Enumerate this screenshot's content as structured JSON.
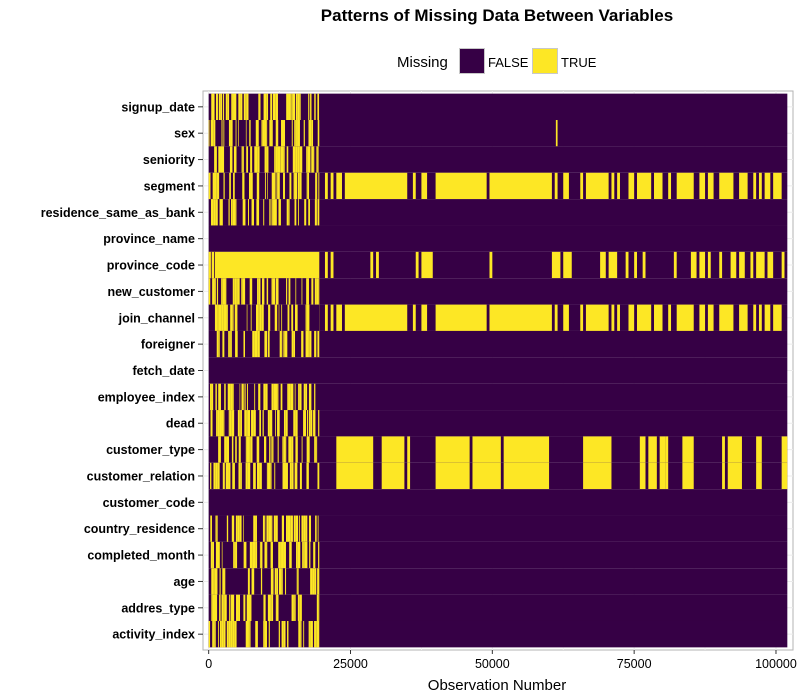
{
  "chart_data": {
    "type": "heatmap",
    "title": "Patterns of Missing Data Between Variables",
    "xlabel": "Observation Number",
    "ylabel": "",
    "xlim": [
      -1000,
      103000
    ],
    "x_ticks": [
      0,
      25000,
      50000,
      75000,
      100000
    ],
    "x_tick_labels": [
      "0",
      "25000",
      "50000",
      "75000",
      "100000"
    ],
    "n_observations": 102000,
    "grid": true,
    "legend": {
      "title": "Missing",
      "placement": "top",
      "entries": [
        {
          "label": "FALSE",
          "color": "#360045"
        },
        {
          "label": "TRUE",
          "color": "#FDE725"
        }
      ]
    },
    "colors": {
      "false": "#360045",
      "true": "#FDE725"
    },
    "variables": [
      {
        "name": "signup_date",
        "true_ranges": [
          [
            0,
            19500
          ]
        ],
        "density": 0.45
      },
      {
        "name": "sex",
        "true_ranges": [
          [
            0,
            19500
          ],
          [
            61200,
            61500
          ]
        ],
        "density": 0.45
      },
      {
        "name": "seniority",
        "true_ranges": [
          [
            0,
            19500
          ]
        ],
        "density": 0.45
      },
      {
        "name": "segment",
        "true_ranges": [
          [
            0,
            19500
          ],
          [
            20500,
            21000
          ],
          [
            21500,
            22000
          ],
          [
            22500,
            23500
          ],
          [
            24000,
            35000
          ],
          [
            36000,
            36500
          ],
          [
            37500,
            38500
          ],
          [
            40000,
            49000
          ],
          [
            49500,
            60500
          ],
          [
            61000,
            61500
          ],
          [
            62500,
            63500
          ],
          [
            65500,
            66000
          ],
          [
            66500,
            70500
          ],
          [
            71000,
            71500
          ],
          [
            72000,
            72500
          ],
          [
            74000,
            75000
          ],
          [
            75500,
            78000
          ],
          [
            78500,
            80000
          ],
          [
            81000,
            81500
          ],
          [
            82500,
            85500
          ],
          [
            86500,
            87500
          ],
          [
            88000,
            89000
          ],
          [
            90000,
            92500
          ],
          [
            93500,
            95000
          ],
          [
            96000,
            96500
          ],
          [
            97000,
            97500
          ],
          [
            98000,
            99000
          ],
          [
            99500,
            101000
          ]
        ],
        "density": 0.45
      },
      {
        "name": "residence_same_as_bank",
        "true_ranges": [
          [
            0,
            19500
          ]
        ],
        "density": 0.45
      },
      {
        "name": "province_name",
        "true_ranges": [],
        "density": 0.45
      },
      {
        "name": "province_code",
        "true_ranges": [
          [
            0,
            19500
          ],
          [
            20500,
            21000
          ],
          [
            21500,
            22000
          ],
          [
            28500,
            29000
          ],
          [
            29500,
            30000
          ],
          [
            36500,
            37000
          ],
          [
            37500,
            39500
          ],
          [
            49500,
            50000
          ],
          [
            60500,
            62000
          ],
          [
            62500,
            64000
          ],
          [
            69000,
            70000
          ],
          [
            70500,
            72000
          ],
          [
            73500,
            74000
          ],
          [
            75000,
            75500
          ],
          [
            76500,
            77000
          ],
          [
            82000,
            82500
          ],
          [
            85000,
            86000
          ],
          [
            86500,
            87500
          ],
          [
            88000,
            88500
          ],
          [
            90000,
            90500
          ],
          [
            92000,
            93000
          ],
          [
            93500,
            94500
          ],
          [
            95500,
            96000
          ],
          [
            96500,
            98000
          ],
          [
            98500,
            99500
          ],
          [
            101000,
            101500
          ]
        ],
        "density": 0.9
      },
      {
        "name": "new_customer",
        "true_ranges": [
          [
            0,
            19500
          ]
        ],
        "density": 0.45
      },
      {
        "name": "join_channel",
        "true_ranges": [
          [
            0,
            19500
          ],
          [
            20500,
            21000
          ],
          [
            21500,
            22000
          ],
          [
            22500,
            23500
          ],
          [
            24000,
            35000
          ],
          [
            36000,
            36500
          ],
          [
            37500,
            38500
          ],
          [
            40000,
            49000
          ],
          [
            49500,
            60500
          ],
          [
            61000,
            61500
          ],
          [
            62500,
            63500
          ],
          [
            65500,
            66000
          ],
          [
            66500,
            70500
          ],
          [
            71000,
            71500
          ],
          [
            72000,
            72500
          ],
          [
            74000,
            75000
          ],
          [
            75500,
            78000
          ],
          [
            78500,
            80000
          ],
          [
            81000,
            81500
          ],
          [
            82500,
            85500
          ],
          [
            86500,
            87500
          ],
          [
            88000,
            89000
          ],
          [
            90000,
            92500
          ],
          [
            93500,
            95000
          ],
          [
            96000,
            96500
          ],
          [
            97000,
            97500
          ],
          [
            98000,
            99000
          ],
          [
            99500,
            101000
          ]
        ],
        "density": 0.45
      },
      {
        "name": "foreigner",
        "true_ranges": [
          [
            0,
            19500
          ]
        ],
        "density": 0.45
      },
      {
        "name": "fetch_date",
        "true_ranges": [],
        "density": 0.45
      },
      {
        "name": "employee_index",
        "true_ranges": [
          [
            0,
            19500
          ]
        ],
        "density": 0.45
      },
      {
        "name": "dead",
        "true_ranges": [
          [
            0,
            19500
          ]
        ],
        "density": 0.45
      },
      {
        "name": "customer_type",
        "true_ranges": [
          [
            0,
            19500
          ],
          [
            22500,
            29000
          ],
          [
            30500,
            34500
          ],
          [
            35000,
            35500
          ],
          [
            40000,
            46000
          ],
          [
            46500,
            51500
          ],
          [
            52000,
            60000
          ],
          [
            66000,
            71000
          ],
          [
            76000,
            77000
          ],
          [
            77500,
            79000
          ],
          [
            79500,
            80500
          ],
          [
            80500,
            81000
          ],
          [
            83500,
            85500
          ],
          [
            90500,
            91000
          ],
          [
            91500,
            94000
          ],
          [
            96500,
            97500
          ],
          [
            101000,
            102000
          ]
        ],
        "density": 0.45
      },
      {
        "name": "customer_relation",
        "true_ranges": [
          [
            0,
            19500
          ],
          [
            22500,
            29000
          ],
          [
            30500,
            34500
          ],
          [
            35000,
            35500
          ],
          [
            40000,
            46000
          ],
          [
            46500,
            51500
          ],
          [
            52000,
            60000
          ],
          [
            66000,
            71000
          ],
          [
            76000,
            77000
          ],
          [
            77500,
            79000
          ],
          [
            79500,
            80500
          ],
          [
            80500,
            81000
          ],
          [
            83500,
            85500
          ],
          [
            90500,
            91000
          ],
          [
            91500,
            94000
          ],
          [
            96500,
            97500
          ],
          [
            101000,
            102000
          ]
        ],
        "density": 0.45
      },
      {
        "name": "customer_code",
        "true_ranges": [],
        "density": 0.45
      },
      {
        "name": "country_residence",
        "true_ranges": [
          [
            0,
            19500
          ]
        ],
        "density": 0.45
      },
      {
        "name": "completed_month",
        "true_ranges": [
          [
            0,
            19500
          ]
        ],
        "density": 0.45
      },
      {
        "name": "age",
        "true_ranges": [
          [
            0,
            19500
          ]
        ],
        "density": 0.45
      },
      {
        "name": "addres_type",
        "true_ranges": [
          [
            0,
            19500
          ]
        ],
        "density": 0.45
      },
      {
        "name": "activity_index",
        "true_ranges": [
          [
            0,
            19500
          ]
        ],
        "density": 0.45
      }
    ]
  }
}
